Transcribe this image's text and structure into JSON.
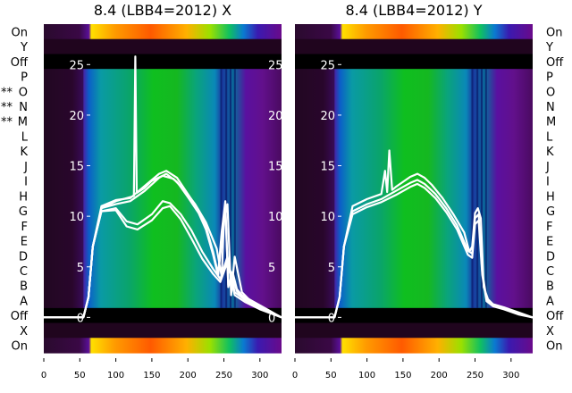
{
  "chart_data": [
    {
      "type": "heatmap",
      "title": "8.4 (LBB4=2012) X",
      "xticks": [
        0,
        50,
        100,
        150,
        200,
        250,
        300
      ],
      "xlim": [
        0,
        330
      ],
      "row_labels": [
        "On",
        "Y",
        "Off",
        "P",
        "O",
        "N",
        "M",
        "L",
        "K",
        "J",
        "I",
        "H",
        "G",
        "F",
        "E",
        "D",
        "C",
        "B",
        "A",
        "Off",
        "X",
        "On"
      ],
      "row_marks": [
        "",
        "",
        "",
        "",
        "**",
        "**",
        "**",
        "",
        "",
        "",
        "",
        "",
        "",
        "",
        "",
        "",
        "",
        "",
        "",
        "",
        "",
        ""
      ],
      "overlay_yticks": [
        0,
        5,
        10,
        15,
        20,
        25
      ],
      "overlay_ylim": [
        -3.5,
        29
      ],
      "overlay_series": [
        {
          "x": [
            0,
            55,
            62,
            68,
            80,
            100,
            120,
            140,
            160,
            170,
            185,
            200,
            215,
            225,
            235,
            242,
            247,
            252,
            256,
            262,
            268,
            275,
            290,
            310,
            330
          ],
          "y": [
            0,
            0,
            2,
            7,
            11,
            11.6,
            11.8,
            13,
            14.2,
            14.5,
            13.8,
            12.2,
            10.6,
            9,
            6.5,
            4.3,
            8.5,
            11.5,
            3,
            4.5,
            2.8,
            2.2,
            1.6,
            0.8,
            0
          ]
        },
        {
          "x": [
            0,
            55,
            62,
            68,
            80,
            100,
            120,
            140,
            160,
            170,
            185,
            200,
            215,
            225,
            235,
            242,
            247,
            252,
            256,
            262,
            268,
            275,
            290,
            310,
            330
          ],
          "y": [
            0,
            0,
            2,
            7,
            10.8,
            11.2,
            11.5,
            12.5,
            13.8,
            14.2,
            13.4,
            11.9,
            10.3,
            8.7,
            6.2,
            4.1,
            7.5,
            10.8,
            3.2,
            4,
            2.6,
            2.1,
            1.5,
            0.7,
            0
          ]
        },
        {
          "x": [
            0,
            55,
            62,
            68,
            80,
            100,
            115,
            130,
            150,
            165,
            175,
            190,
            205,
            220,
            235,
            245,
            255,
            265,
            280,
            300,
            330
          ],
          "y": [
            0,
            0,
            2,
            7,
            10.5,
            10.8,
            9.5,
            9.2,
            10.2,
            11.5,
            11.3,
            10.2,
            8.6,
            6.5,
            4.8,
            3.8,
            6,
            2.5,
            1.7,
            0.9,
            0
          ]
        },
        {
          "x": [
            0,
            55,
            62,
            68,
            80,
            100,
            115,
            130,
            150,
            165,
            175,
            190,
            205,
            220,
            235,
            245,
            255,
            265,
            280,
            300,
            330
          ],
          "y": [
            0,
            0,
            2,
            7,
            10.5,
            10.6,
            9,
            8.7,
            9.6,
            10.8,
            11,
            9.7,
            7.8,
            5.8,
            4.3,
            3.5,
            5.5,
            2.2,
            1.5,
            0.8,
            0
          ]
        },
        {
          "x": [
            0,
            55,
            62,
            68,
            80,
            100,
            125,
            127,
            129,
            140,
            150,
            165,
            180,
            195,
            210,
            225,
            240,
            247,
            250,
            255,
            260,
            265,
            275,
            290,
            310,
            330
          ],
          "y": [
            0,
            0,
            2,
            7,
            10.8,
            11.5,
            12,
            25.8,
            12.3,
            12.8,
            13.5,
            14,
            13.7,
            12.6,
            11.2,
            9.4,
            6.8,
            4,
            9.5,
            11.2,
            2.2,
            6,
            2.5,
            1.4,
            0.7,
            0
          ]
        }
      ]
    },
    {
      "type": "heatmap",
      "title": "8.4 (LBB4=2012) Y",
      "xticks": [
        0,
        50,
        100,
        150,
        200,
        250,
        300
      ],
      "xlim": [
        0,
        330
      ],
      "row_labels": [
        "On",
        "Y",
        "Off",
        "P",
        "O",
        "N",
        "M",
        "L",
        "K",
        "J",
        "I",
        "H",
        "G",
        "F",
        "E",
        "D",
        "C",
        "B",
        "A",
        "Off",
        "X",
        "On"
      ],
      "overlay_yticks": [
        0,
        5,
        10,
        15,
        20,
        25
      ],
      "overlay_ylim": [
        -3.5,
        29
      ],
      "overlay_series": [
        {
          "x": [
            0,
            55,
            62,
            68,
            80,
            100,
            120,
            125,
            128,
            131,
            135,
            140,
            150,
            160,
            170,
            180,
            190,
            205,
            220,
            235,
            242,
            246,
            250,
            254,
            258,
            262,
            268,
            275,
            290,
            310,
            330
          ],
          "y": [
            0,
            0,
            2,
            7,
            11,
            11.7,
            12.2,
            14.5,
            12.4,
            16.5,
            12.6,
            12.9,
            13.4,
            13.9,
            14.2,
            13.8,
            13.1,
            11.8,
            10.2,
            8.4,
            6.5,
            7,
            10.3,
            10.8,
            9.8,
            3,
            1.8,
            1.3,
            1,
            0.5,
            0
          ]
        },
        {
          "x": [
            0,
            55,
            62,
            68,
            80,
            100,
            120,
            140,
            160,
            170,
            180,
            195,
            210,
            225,
            240,
            246,
            250,
            255,
            260,
            266,
            275,
            290,
            310,
            330
          ],
          "y": [
            0,
            0,
            2,
            7,
            10.5,
            11.2,
            11.7,
            12.5,
            13.3,
            13.6,
            13.2,
            12.2,
            10.8,
            9.1,
            6.6,
            6.3,
            9.8,
            10.2,
            4.5,
            1.8,
            1.2,
            0.9,
            0.4,
            0
          ]
        },
        {
          "x": [
            0,
            55,
            62,
            68,
            80,
            100,
            120,
            140,
            160,
            170,
            180,
            195,
            210,
            225,
            240,
            246,
            250,
            255,
            260,
            266,
            275,
            290,
            310,
            330
          ],
          "y": [
            0,
            0,
            2,
            7,
            10.2,
            10.9,
            11.4,
            12.1,
            12.9,
            13.2,
            12.8,
            11.8,
            10.4,
            8.7,
            6.2,
            5.9,
            9.2,
            9.6,
            4.2,
            1.6,
            1.1,
            0.8,
            0.3,
            0
          ]
        }
      ]
    }
  ]
}
